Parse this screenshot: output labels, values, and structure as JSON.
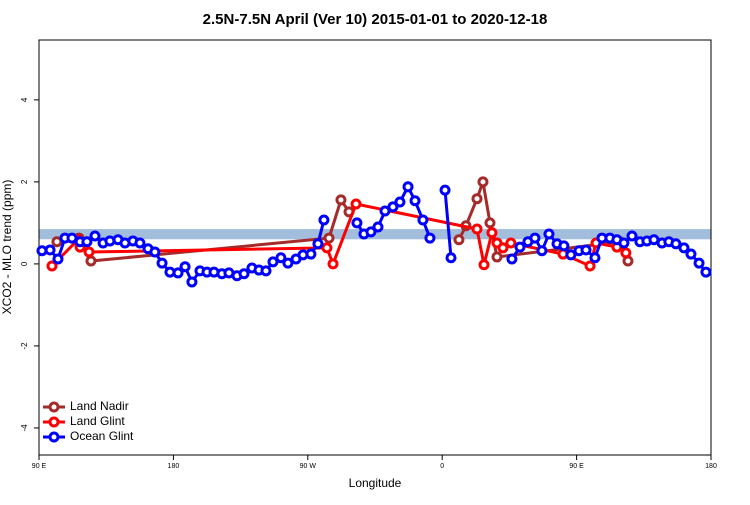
{
  "chart_data": {
    "type": "line",
    "title": "2.5N-7.5N April (Ver 10)   2015-01-01 to 2020-12-18",
    "xlabel": "Longitude",
    "ylabel": "XCO2 - MLO trend (ppm)",
    "xlim": [
      90,
      540
    ],
    "ylim": [
      -4.66,
      5.46
    ],
    "xticks": [
      {
        "value": 90,
        "label": "90 E"
      },
      180,
      {
        "value": 270,
        "label": "90 W"
      },
      {
        "value": 360,
        "label": "0"
      },
      {
        "value": 450,
        "label": "90 E"
      },
      {
        "value": 540,
        "label": "180"
      }
    ],
    "yticks": [
      -4,
      -2,
      0,
      2,
      4
    ],
    "band": {
      "ylim": [
        0.6,
        0.85
      ],
      "color": "#a3bddc"
    },
    "legend": "lower left",
    "series": [
      {
        "name": "Land Nadir",
        "color": "#a52a2a",
        "x": [
          102,
          116.8,
          124.8,
          284.2,
          292.2,
          297.6,
          352.5,
          371.2,
          375.9,
          383.3,
          387.3,
          392,
          396.7,
          479,
          484.4
        ],
        "values": [
          0.54,
          0.63,
          0.07,
          0.63,
          1.56,
          1.27,
          null,
          0.59,
          0.93,
          1.59,
          2.0,
          1.0,
          0.17,
          0.54,
          0.07
        ]
      },
      {
        "name": "Land Glint",
        "color": "#ff0000",
        "x": [
          98.7,
          116.1,
          117.5,
          123.5,
          282.8,
          286.9,
          302.3,
          383.3,
          388,
          393.3,
          396.7,
          400.7,
          406,
          440.9,
          459,
          463,
          477,
          483
        ],
        "values": [
          -0.05,
          0.59,
          0.41,
          0.29,
          0.39,
          0.0,
          1.46,
          0.85,
          -0.02,
          0.76,
          0.51,
          0.39,
          0.51,
          0.24,
          -0.05,
          0.51,
          0.41,
          0.27
        ]
      },
      {
        "name": "Ocean Glint",
        "color": "#0000ff",
        "x": [
          92,
          97.4,
          102.7,
          107.4,
          112.1,
          117.5,
          122.1,
          127.5,
          132.9,
          137.5,
          142.9,
          147.6,
          152.9,
          157.6,
          163,
          167.6,
          172.4,
          177.7,
          183.1,
          187.8,
          192.4,
          197.8,
          202.5,
          207.2,
          212.5,
          217.2,
          222.6,
          227.3,
          232.6,
          237.3,
          242,
          246.7,
          252,
          256.7,
          262.1,
          266.8,
          272.1,
          276.8,
          280.8,
          290,
          302.9,
          307.6,
          312.3,
          317,
          321.7,
          327,
          331.7,
          337.1,
          341.8,
          347.1,
          351.8,
          356,
          361.9,
          365.9,
          390,
          406.7,
          412.1,
          417.4,
          422.1,
          426.8,
          431.5,
          436.9,
          441.5,
          446.2,
          451.6,
          456.3,
          462.3,
          467,
          472.3,
          477,
          481.7,
          487.1,
          492.4,
          497.1,
          501.8,
          507.2,
          511.8,
          516.5,
          521.9,
          526.6,
          532,
          536.6
        ],
        "values": [
          0.32,
          0.34,
          0.12,
          0.63,
          0.63,
          0.54,
          0.54,
          0.68,
          0.51,
          0.56,
          0.59,
          0.51,
          0.56,
          0.51,
          0.37,
          0.29,
          0.02,
          -0.2,
          -0.22,
          -0.07,
          -0.44,
          -0.17,
          -0.2,
          -0.2,
          -0.24,
          -0.22,
          -0.29,
          -0.24,
          -0.1,
          -0.15,
          -0.17,
          0.05,
          0.15,
          0.02,
          0.12,
          0.22,
          0.24,
          0.49,
          1.07,
          null,
          1.0,
          0.73,
          0.78,
          0.9,
          1.29,
          1.39,
          1.51,
          1.88,
          1.54,
          1.07,
          0.63,
          null,
          1.8,
          0.15,
          null,
          0.12,
          0.41,
          0.54,
          0.63,
          0.32,
          0.73,
          0.49,
          0.44,
          0.22,
          0.32,
          0.34,
          0.15,
          0.63,
          0.63,
          0.59,
          0.51,
          0.68,
          0.54,
          0.56,
          0.59,
          0.51,
          0.54,
          0.49,
          0.39,
          0.24,
          0.02,
          -0.2
        ]
      }
    ]
  }
}
